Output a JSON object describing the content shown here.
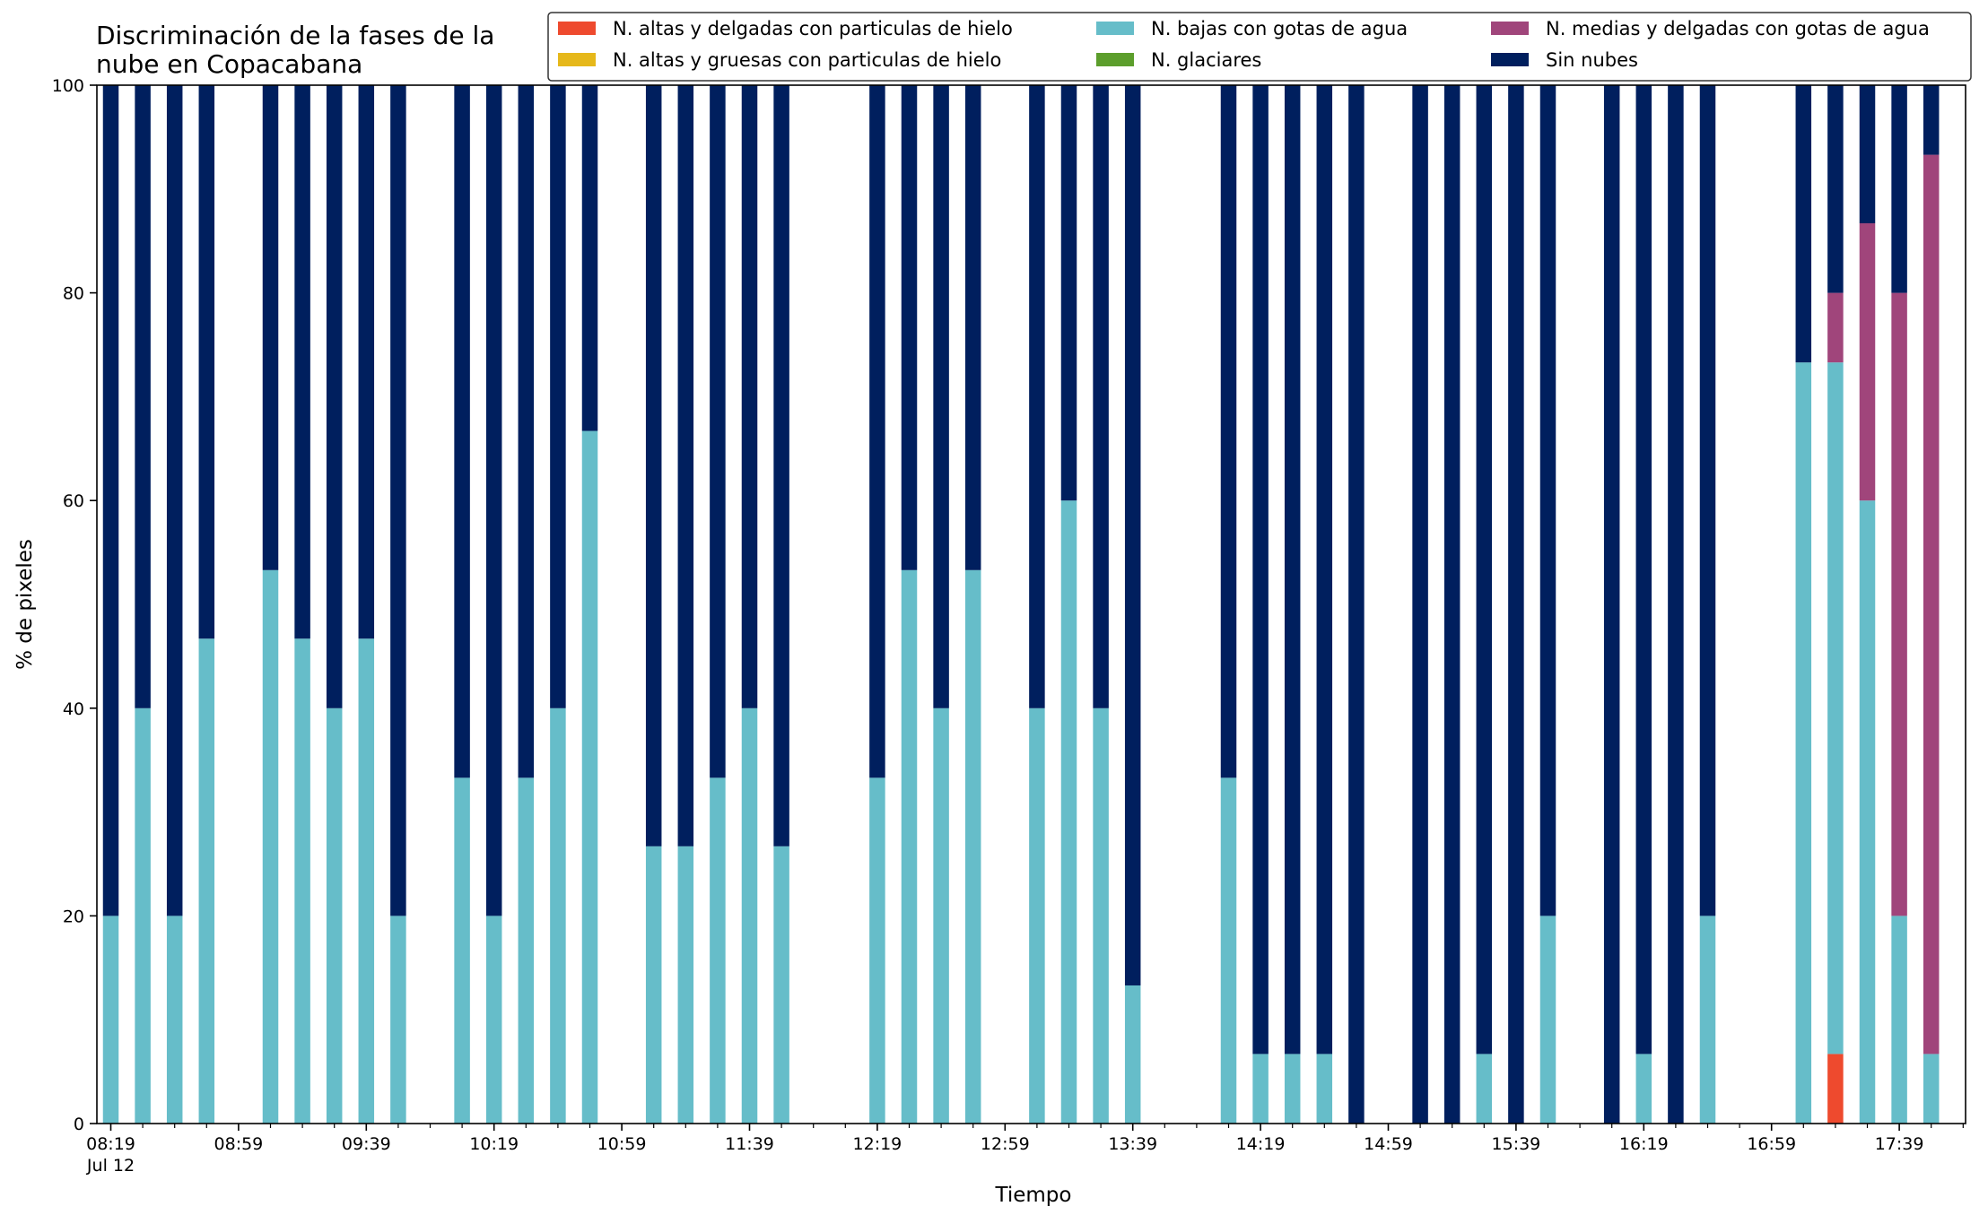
{
  "chart_data": {
    "type": "bar",
    "stacked": true,
    "title": "Discriminación de la fases de la\nnube en Copacabana",
    "xlabel": "Tiempo",
    "ylabel": "% de pixeles",
    "ylim": [
      0,
      100
    ],
    "yticks": [
      0,
      20,
      40,
      60,
      80,
      100
    ],
    "x_start": "08:19",
    "x_step_minutes": 10,
    "x_count": 59,
    "xtick_labels": [
      {
        "index": 0,
        "label": "08:19",
        "sublabel": "Jul 12"
      },
      {
        "index": 4,
        "label": "08:59"
      },
      {
        "index": 8,
        "label": "09:39"
      },
      {
        "index": 12,
        "label": "10:19"
      },
      {
        "index": 16,
        "label": "10:59"
      },
      {
        "index": 20,
        "label": "11:39"
      },
      {
        "index": 24,
        "label": "12:19"
      },
      {
        "index": 28,
        "label": "12:59"
      },
      {
        "index": 32,
        "label": "13:39"
      },
      {
        "index": 36,
        "label": "14:19"
      },
      {
        "index": 40,
        "label": "14:59"
      },
      {
        "index": 44,
        "label": "15:39"
      },
      {
        "index": 48,
        "label": "16:19"
      },
      {
        "index": 52,
        "label": "16:59"
      },
      {
        "index": 56,
        "label": "17:39"
      }
    ],
    "legend_position": "top-right",
    "series": [
      {
        "name": "N. altas y delgadas con particulas de hielo",
        "color": "#ee4a2e"
      },
      {
        "name": "N. altas y gruesas con particulas de hielo",
        "color": "#e6b81a"
      },
      {
        "name": "N. bajas con gotas de agua",
        "color": "#66bdc9"
      },
      {
        "name": "N. glaciares",
        "color": "#5c9e2c"
      },
      {
        "name": "N. medias y delgadas con gotas de agua",
        "color": "#a0457b"
      },
      {
        "name": "Sin nubes",
        "color": "#001f5e"
      }
    ],
    "legend_columns": [
      [
        0,
        1
      ],
      [
        2,
        3
      ],
      [
        4,
        5
      ]
    ],
    "bars": [
      {
        "time": "08:19",
        "values": [
          0,
          0,
          20,
          0,
          0,
          80
        ]
      },
      {
        "time": "08:29",
        "values": [
          0,
          0,
          40,
          0,
          0,
          60
        ]
      },
      {
        "time": "08:39",
        "values": [
          0,
          0,
          20,
          0,
          0,
          80
        ]
      },
      {
        "time": "08:49",
        "values": [
          0,
          0,
          46.7,
          0,
          0,
          53.3
        ]
      },
      {
        "time": "09:09",
        "values": [
          0,
          0,
          53.3,
          0,
          0,
          46.7
        ]
      },
      {
        "time": "09:19",
        "values": [
          0,
          0,
          46.7,
          0,
          0,
          53.3
        ]
      },
      {
        "time": "09:29",
        "values": [
          0,
          0,
          40,
          0,
          0,
          60
        ]
      },
      {
        "time": "09:39",
        "values": [
          0,
          0,
          46.7,
          0,
          0,
          53.3
        ]
      },
      {
        "time": "09:49",
        "values": [
          0,
          0,
          20,
          0,
          0,
          80
        ]
      },
      {
        "time": "10:09",
        "values": [
          0,
          0,
          33.3,
          0,
          0,
          66.7
        ]
      },
      {
        "time": "10:19",
        "values": [
          0,
          0,
          20,
          0,
          0,
          80
        ]
      },
      {
        "time": "10:29",
        "values": [
          0,
          0,
          33.3,
          0,
          0,
          66.7
        ]
      },
      {
        "time": "10:39",
        "values": [
          0,
          0,
          40,
          0,
          0,
          60
        ]
      },
      {
        "time": "10:49",
        "values": [
          0,
          0,
          66.7,
          0,
          0,
          33.3
        ]
      },
      {
        "time": "11:09",
        "values": [
          0,
          0,
          26.7,
          0,
          0,
          73.3
        ]
      },
      {
        "time": "11:19",
        "values": [
          0,
          0,
          26.7,
          0,
          0,
          73.3
        ]
      },
      {
        "time": "11:29",
        "values": [
          0,
          0,
          33.3,
          0,
          0,
          66.7
        ]
      },
      {
        "time": "11:39",
        "values": [
          0,
          0,
          40,
          0,
          0,
          60
        ]
      },
      {
        "time": "11:49",
        "values": [
          0,
          0,
          26.7,
          0,
          0,
          73.3
        ]
      },
      {
        "time": "12:19",
        "values": [
          0,
          0,
          33.3,
          0,
          0,
          66.7
        ]
      },
      {
        "time": "12:29",
        "values": [
          0,
          0,
          53.3,
          0,
          0,
          46.7
        ]
      },
      {
        "time": "12:39",
        "values": [
          0,
          0,
          40,
          0,
          0,
          60
        ]
      },
      {
        "time": "12:49",
        "values": [
          0,
          0,
          53.3,
          0,
          0,
          46.7
        ]
      },
      {
        "time": "13:09",
        "values": [
          0,
          0,
          40,
          0,
          0,
          60
        ]
      },
      {
        "time": "13:19",
        "values": [
          0,
          0,
          60,
          0,
          0,
          40
        ]
      },
      {
        "time": "13:29",
        "values": [
          0,
          0,
          40,
          0,
          0,
          60
        ]
      },
      {
        "time": "13:39",
        "values": [
          0,
          0,
          13.3,
          0,
          0,
          86.7
        ]
      },
      {
        "time": "14:09",
        "values": [
          0,
          0,
          33.3,
          0,
          0,
          66.7
        ]
      },
      {
        "time": "14:19",
        "values": [
          0,
          0,
          6.7,
          0,
          0,
          93.3
        ]
      },
      {
        "time": "14:29",
        "values": [
          0,
          0,
          6.7,
          0,
          0,
          93.3
        ]
      },
      {
        "time": "14:39",
        "values": [
          0,
          0,
          6.7,
          0,
          0,
          93.3
        ]
      },
      {
        "time": "14:49",
        "values": [
          0,
          0,
          0,
          0,
          0,
          100
        ]
      },
      {
        "time": "15:09",
        "values": [
          0,
          0,
          0,
          0,
          0,
          100
        ]
      },
      {
        "time": "15:19",
        "values": [
          0,
          0,
          0,
          0,
          0,
          100
        ]
      },
      {
        "time": "15:29",
        "values": [
          0,
          0,
          6.7,
          0,
          0,
          93.3
        ]
      },
      {
        "time": "15:39",
        "values": [
          0,
          0,
          0,
          0,
          0,
          100
        ]
      },
      {
        "time": "15:49",
        "values": [
          0,
          0,
          20,
          0,
          0,
          80
        ]
      },
      {
        "time": "16:09",
        "values": [
          0,
          0,
          0,
          0,
          0,
          100
        ]
      },
      {
        "time": "16:19",
        "values": [
          0,
          0,
          6.7,
          0,
          0,
          93.3
        ]
      },
      {
        "time": "16:29",
        "values": [
          0,
          0,
          0,
          0,
          0,
          100
        ]
      },
      {
        "time": "16:39",
        "values": [
          0,
          0,
          20,
          0,
          0,
          80
        ]
      },
      {
        "time": "17:09",
        "values": [
          0,
          0,
          73.3,
          0,
          0,
          26.7
        ]
      },
      {
        "time": "17:19",
        "values": [
          6.7,
          0,
          66.6,
          0,
          6.7,
          20
        ]
      },
      {
        "time": "17:29",
        "values": [
          0,
          0,
          60,
          0,
          26.7,
          13.3
        ]
      },
      {
        "time": "17:39",
        "values": [
          0,
          0,
          20,
          0,
          60,
          20
        ]
      },
      {
        "time": "17:49",
        "values": [
          0,
          0,
          6.7,
          0,
          86.6,
          6.7
        ]
      }
    ]
  }
}
